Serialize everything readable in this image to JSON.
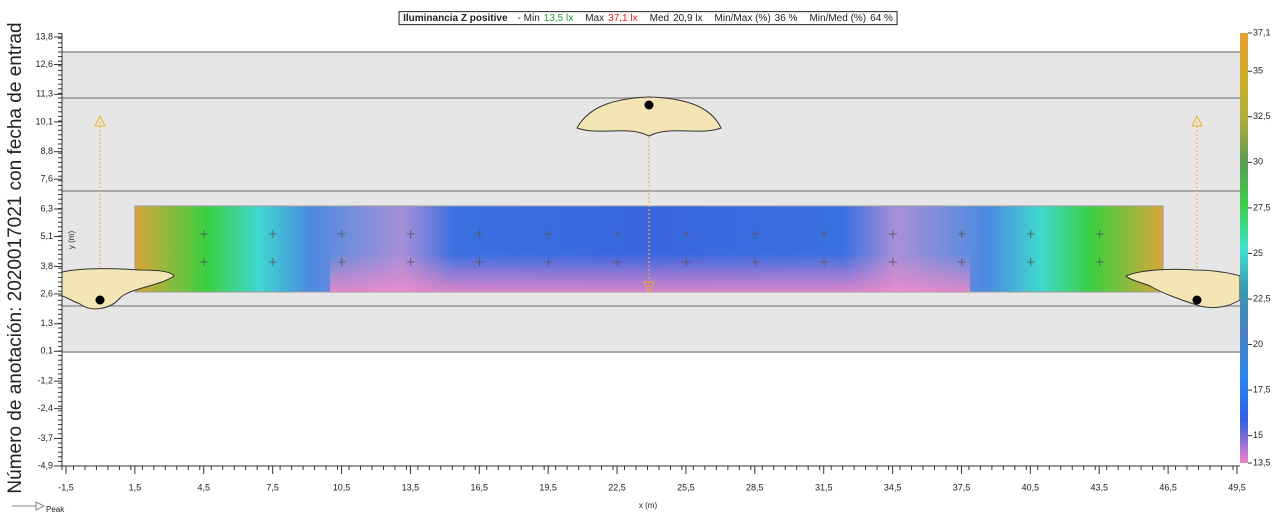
{
  "chart_data": {
    "type": "illuminance-map",
    "title": {
      "name": "Iluminancia  Z positive",
      "stats": [
        {
          "label": "- Min",
          "value": "13,5 lx",
          "color": "#2a9a2a"
        },
        {
          "label": "Max",
          "value": "37,1 lx",
          "color": "#e02020"
        },
        {
          "label": "Med",
          "value": "20,9 lx",
          "color": "#222222"
        },
        {
          "label": "Min/Max (%)",
          "value": "36 %",
          "color": "#222222"
        },
        {
          "label": "Min/Med (%)",
          "value": "64 %",
          "color": "#222222"
        }
      ]
    },
    "side_note": "Número de anotación: 2020017021 con fecha de entrad",
    "x_label": "x (m)",
    "y_label": "y (m)",
    "peak_label": "Peak",
    "xlim": [
      -1.5,
      49.5
    ],
    "ylim": [
      -4.9,
      13.8
    ],
    "xticks": [
      {
        "value": -1.5,
        "label": "-1,5"
      },
      {
        "value": 1.5,
        "label": "1,5"
      },
      {
        "value": 4.5,
        "label": "4,5"
      },
      {
        "value": 7.5,
        "label": "7,5"
      },
      {
        "value": 10.5,
        "label": "10,5"
      },
      {
        "value": 13.5,
        "label": "13,5"
      },
      {
        "value": 16.5,
        "label": "16,5"
      },
      {
        "value": 19.5,
        "label": "19,5"
      },
      {
        "value": 22.5,
        "label": "22,5"
      },
      {
        "value": 25.5,
        "label": "25,5"
      },
      {
        "value": 28.5,
        "label": "28,5"
      },
      {
        "value": 31.5,
        "label": "31,5"
      },
      {
        "value": 34.5,
        "label": "34,5"
      },
      {
        "value": 37.5,
        "label": "37,5"
      },
      {
        "value": 40.5,
        "label": "40,5"
      },
      {
        "value": 43.5,
        "label": "43,5"
      },
      {
        "value": 46.5,
        "label": "46,5"
      },
      {
        "value": 49.5,
        "label": "49,5"
      }
    ],
    "yticks": [
      {
        "value": 13.8,
        "label": "13,8"
      },
      {
        "value": 12.6,
        "label": "12,6"
      },
      {
        "value": 11.3,
        "label": "11,3"
      },
      {
        "value": 10.1,
        "label": "10,1"
      },
      {
        "value": 8.8,
        "label": "8,8"
      },
      {
        "value": 7.6,
        "label": "7,6"
      },
      {
        "value": 6.3,
        "label": "6,3"
      },
      {
        "value": 5.1,
        "label": "5,1"
      },
      {
        "value": 3.8,
        "label": "3,8"
      },
      {
        "value": 2.6,
        "label": "2,6"
      },
      {
        "value": 1.3,
        "label": "1,3"
      },
      {
        "value": 0.1,
        "label": "0,1"
      },
      {
        "value": -1.2,
        "label": "-1,2"
      },
      {
        "value": -2.4,
        "label": "-2,4"
      },
      {
        "value": -3.7,
        "label": "-3,7"
      },
      {
        "value": -4.9,
        "label": "-4,9"
      }
    ],
    "colorbar": {
      "lim": [
        13.5,
        37.1
      ],
      "ticks": [
        {
          "value": 37.1,
          "label": "37,1"
        },
        35,
        {
          "value": 32.5,
          "label": "32,5"
        },
        30,
        {
          "value": 27.5,
          "label": "27,5"
        },
        25,
        {
          "value": 22.5,
          "label": "22,5"
        },
        20,
        {
          "value": 17.5,
          "label": "17,5"
        },
        15,
        {
          "value": 13.5,
          "label": "13,5"
        }
      ],
      "colors": [
        "#e8a030",
        "#cfae2c",
        "#b0ad38",
        "#5c9c58",
        "#3ccf48",
        "#40e0d0",
        "#3898b0",
        "#4a80c0",
        "#2a86f0",
        "#3060e0",
        "#f080c8"
      ]
    }
  }
}
